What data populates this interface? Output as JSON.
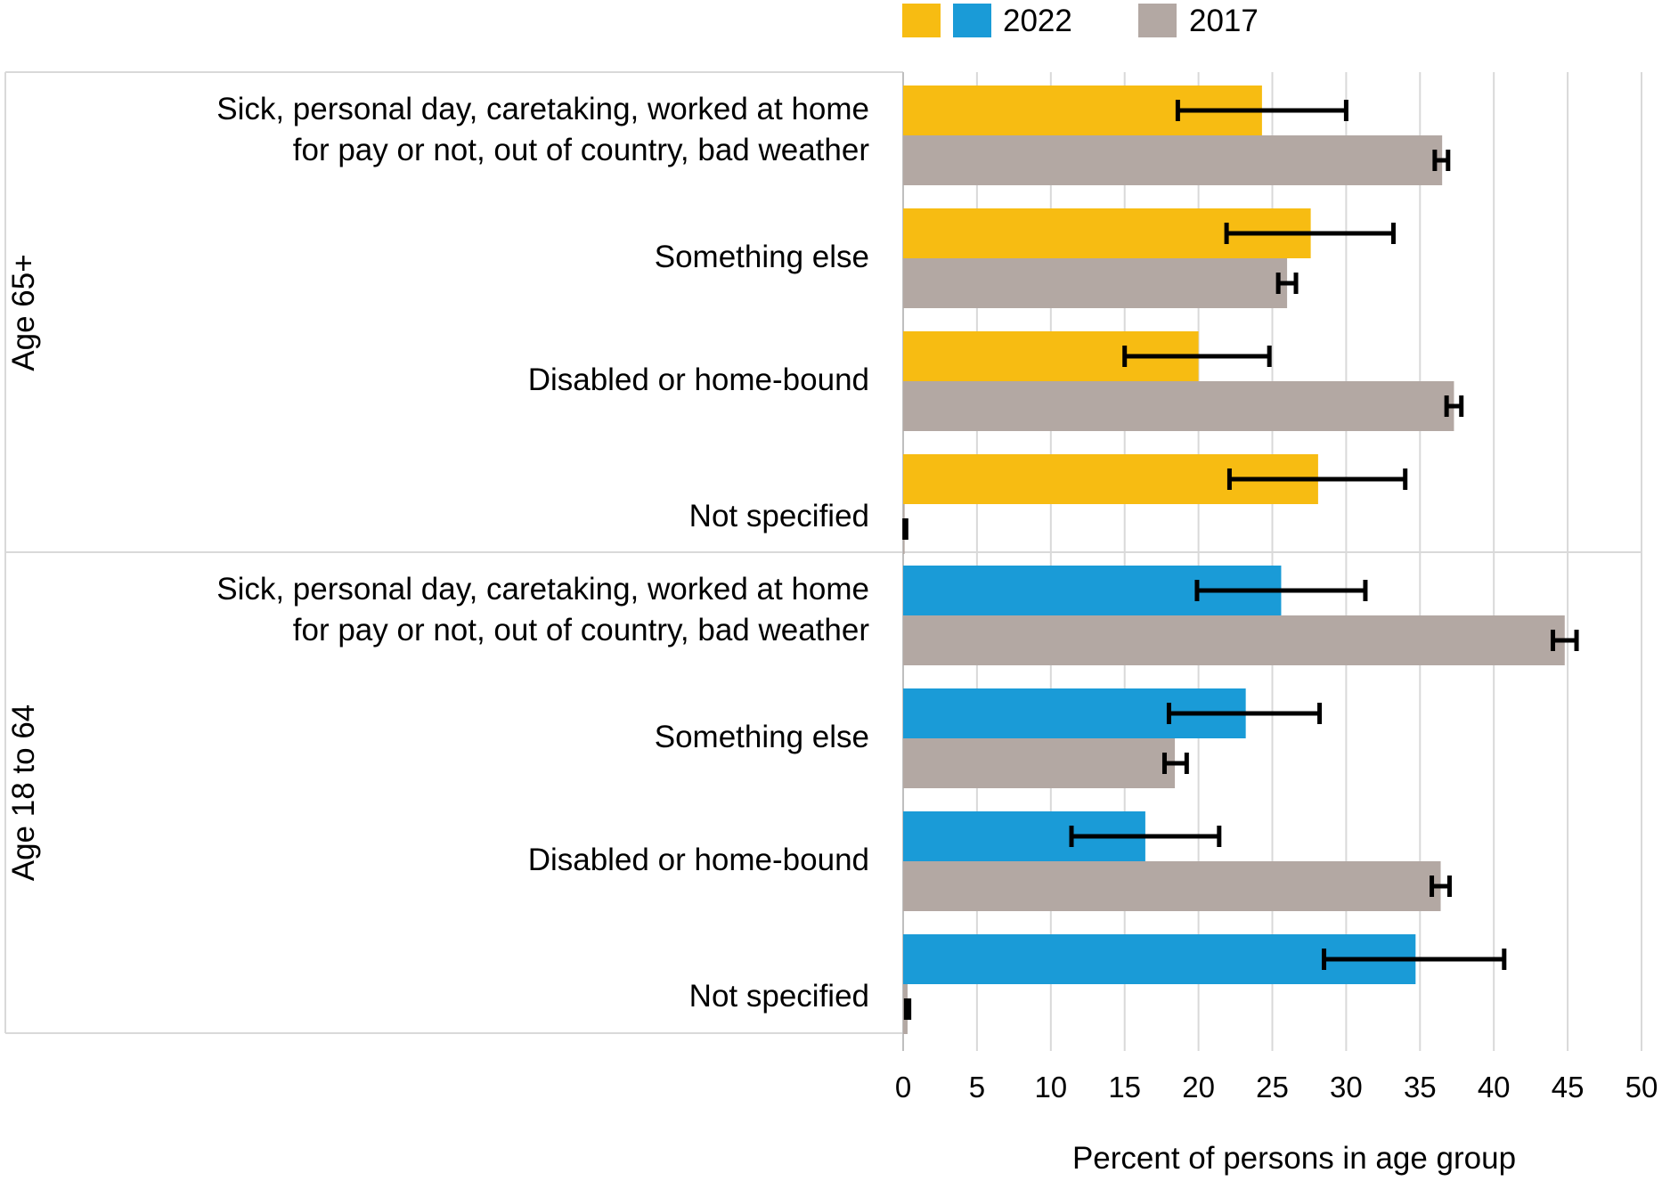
{
  "chart_data": {
    "type": "bar",
    "orientation": "horizontal",
    "xlabel": "Percent of persons in age group",
    "xlim": [
      0,
      50
    ],
    "xticks": [
      "0",
      "5",
      "10",
      "15",
      "20",
      "25",
      "30",
      "35",
      "40",
      "45",
      "50"
    ],
    "grid": "vertical",
    "legend": {
      "placement": "top-right",
      "entries": [
        "2022",
        "2017"
      ]
    },
    "colors": {
      "age65_2022": "#F7BC12",
      "age18_2022": "#1A9BD7",
      "y2017": "#B3A8A3",
      "error_bar": "#000000",
      "grid": "#D9D9D9"
    },
    "groups": [
      {
        "name": "Age 65+",
        "categories": [
          {
            "label_lines": [
              "Sick, personal day, caretaking, worked at home",
              "for pay or not, out of country, bad weather"
            ],
            "v2022": 24.3,
            "err2022": [
              18.6,
              30.0
            ],
            "v2017": 36.5,
            "err2017": [
              36.0,
              36.9
            ]
          },
          {
            "label_lines": [
              "Something else"
            ],
            "v2022": 27.6,
            "err2022": [
              21.9,
              33.2
            ],
            "v2017": 26.0,
            "err2017": [
              25.4,
              26.6
            ]
          },
          {
            "label_lines": [
              "Disabled or home-bound"
            ],
            "v2022": 20.0,
            "err2022": [
              15.0,
              24.8
            ],
            "v2017": 37.3,
            "err2017": [
              36.8,
              37.8
            ]
          },
          {
            "label_lines": [
              "Not specified"
            ],
            "v2022": 28.1,
            "err2022": [
              22.1,
              34.0
            ],
            "v2017": 0.1,
            "err2017": [
              0.1,
              0.2
            ]
          }
        ]
      },
      {
        "name": "Age 18 to 64",
        "categories": [
          {
            "label_lines": [
              "Sick, personal day, caretaking, worked at home",
              "for pay or not, out of country, bad weather"
            ],
            "v2022": 25.6,
            "err2022": [
              19.9,
              31.3
            ],
            "v2017": 44.8,
            "err2017": [
              44.0,
              45.6
            ]
          },
          {
            "label_lines": [
              "Something else"
            ],
            "v2022": 23.2,
            "err2022": [
              18.0,
              28.2
            ],
            "v2017": 18.4,
            "err2017": [
              17.7,
              19.2
            ]
          },
          {
            "label_lines": [
              "Disabled or home-bound"
            ],
            "v2022": 16.4,
            "err2022": [
              11.4,
              21.4
            ],
            "v2017": 36.4,
            "err2017": [
              35.8,
              37.0
            ]
          },
          {
            "label_lines": [
              "Not specified"
            ],
            "v2022": 34.7,
            "err2022": [
              28.5,
              40.7
            ],
            "v2017": 0.3,
            "err2017": [
              0.2,
              0.4
            ]
          }
        ]
      }
    ]
  }
}
